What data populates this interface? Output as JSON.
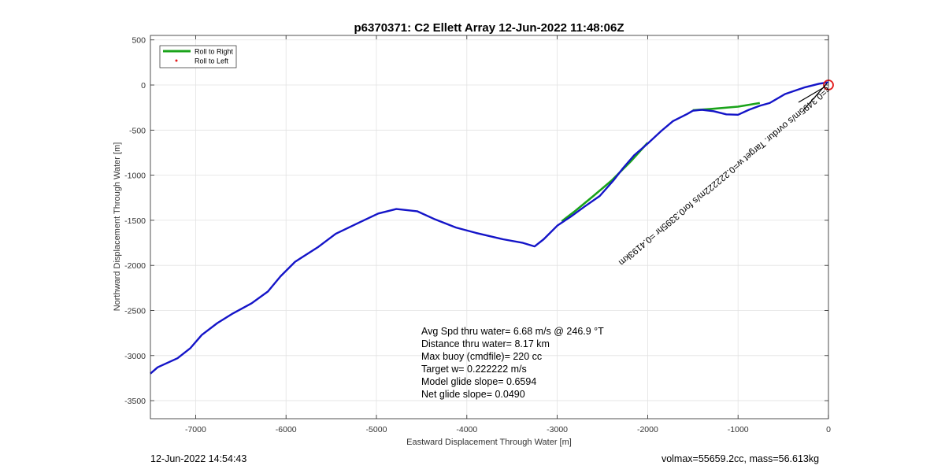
{
  "chart_data": {
    "type": "line",
    "title": "p6370371: C2 Ellett Array 12-Jun-2022 11:48:06Z",
    "xlabel": "Eastward Displacement Through Water [m]",
    "ylabel": "Northward Displacement Through Water [m]",
    "xlim": [
      -7500,
      0
    ],
    "ylim": [
      -3700,
      550
    ],
    "xticks": [
      "-7000",
      "-6000",
      "-5000",
      "-4000",
      "-3000",
      "-2000",
      "-1000",
      "0"
    ],
    "yticks": [
      "500",
      "0",
      "-500",
      "-1000",
      "-1500",
      "-2000",
      "-2500",
      "-3000",
      "-3500"
    ],
    "xtick_values": [
      -7000,
      -6000,
      -5000,
      -4000,
      -3000,
      -2000,
      -1000,
      0
    ],
    "ytick_values": [
      500,
      0,
      -500,
      -1000,
      -1500,
      -2000,
      -2500,
      -3000,
      -3500
    ],
    "grid": true,
    "legend_position": "top-left",
    "legend": [
      {
        "name": "Roll to Right",
        "color": "#1aa31a",
        "style": "line"
      },
      {
        "name": "Roll to Left",
        "color": "#e31a1a",
        "style": "dot"
      }
    ],
    "series": [
      {
        "name": "Roll to Right",
        "color": "#1aa31a",
        "segments": [
          [
            [
              -1500,
              -280
            ],
            [
              -1300,
              -265
            ],
            [
              -1000,
              -240
            ],
            [
              -760,
              -200
            ]
          ],
          [
            [
              -2950,
              -1510
            ],
            [
              -2800,
              -1395
            ],
            [
              -2600,
              -1230
            ],
            [
              -2400,
              -1060
            ],
            [
              -2180,
              -840
            ],
            [
              -2000,
              -640
            ]
          ]
        ]
      },
      {
        "name": "path",
        "color": "#1414c8",
        "points": [
          [
            0,
            30
          ],
          [
            -100,
            15
          ],
          [
            -260,
            -25
          ],
          [
            -480,
            -100
          ],
          [
            -650,
            -200
          ],
          [
            -760,
            -230
          ],
          [
            -880,
            -275
          ],
          [
            -1000,
            -330
          ],
          [
            -1130,
            -325
          ],
          [
            -1270,
            -290
          ],
          [
            -1400,
            -275
          ],
          [
            -1500,
            -285
          ],
          [
            -1560,
            -320
          ],
          [
            -1720,
            -400
          ],
          [
            -1850,
            -510
          ],
          [
            -2000,
            -650
          ],
          [
            -2150,
            -780
          ],
          [
            -2270,
            -920
          ],
          [
            -2380,
            -1060
          ],
          [
            -2530,
            -1230
          ],
          [
            -2700,
            -1350
          ],
          [
            -2850,
            -1460
          ],
          [
            -3000,
            -1560
          ],
          [
            -3150,
            -1710
          ],
          [
            -3250,
            -1790
          ],
          [
            -3380,
            -1750
          ],
          [
            -3600,
            -1710
          ],
          [
            -3900,
            -1640
          ],
          [
            -4120,
            -1580
          ],
          [
            -4350,
            -1490
          ],
          [
            -4550,
            -1400
          ],
          [
            -4780,
            -1375
          ],
          [
            -4980,
            -1425
          ],
          [
            -5180,
            -1520
          ],
          [
            -5450,
            -1650
          ],
          [
            -5650,
            -1800
          ],
          [
            -5900,
            -1960
          ],
          [
            -6060,
            -2120
          ],
          [
            -6200,
            -2290
          ],
          [
            -6380,
            -2420
          ],
          [
            -6600,
            -2540
          ],
          [
            -6760,
            -2640
          ],
          [
            -6930,
            -2770
          ],
          [
            -7060,
            -2920
          ],
          [
            -7200,
            -3030
          ],
          [
            -7420,
            -3130
          ],
          [
            -7500,
            -3200
          ]
        ]
      }
    ],
    "end_marker": {
      "x": 0,
      "y": 0,
      "color": "#e31a1a"
    },
    "annotation": {
      "text": "ε=0.3495m/s ovrdur. Target w=0.222222m/s for0.3395hr =0.4193km",
      "angle_deg": -39
    },
    "stats": [
      "Avg Spd thru water=  6.68 m/s @ 246.9 °T",
      "Distance thru water=  8.17 km",
      "Max buoy (cmdfile)= 220 cc",
      "Target w= 0.222222 m/s",
      "Model glide slope= 0.6594",
      "Net glide slope= 0.0490"
    ]
  },
  "footer": {
    "left": "12-Jun-2022 14:54:43",
    "right": "volmax=55659.2cc, mass=56.613kg"
  }
}
